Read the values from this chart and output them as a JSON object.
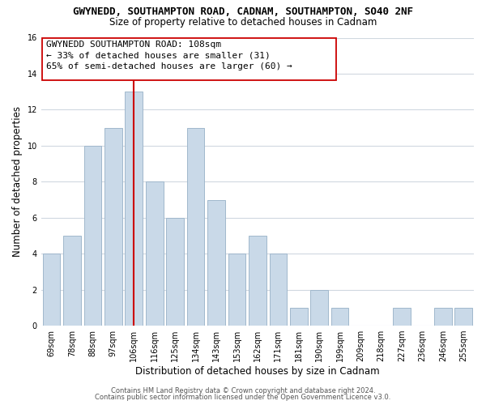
{
  "title": "GWYNEDD, SOUTHAMPTON ROAD, CADNAM, SOUTHAMPTON, SO40 2NF",
  "subtitle": "Size of property relative to detached houses in Cadnam",
  "xlabel": "Distribution of detached houses by size in Cadnam",
  "ylabel": "Number of detached properties",
  "bar_labels": [
    "69sqm",
    "78sqm",
    "88sqm",
    "97sqm",
    "106sqm",
    "116sqm",
    "125sqm",
    "134sqm",
    "143sqm",
    "153sqm",
    "162sqm",
    "171sqm",
    "181sqm",
    "190sqm",
    "199sqm",
    "209sqm",
    "218sqm",
    "227sqm",
    "236sqm",
    "246sqm",
    "255sqm"
  ],
  "bar_values": [
    4,
    5,
    10,
    11,
    13,
    8,
    6,
    11,
    7,
    4,
    5,
    4,
    1,
    2,
    1,
    0,
    0,
    1,
    0,
    1,
    1
  ],
  "bar_color": "#c9d9e8",
  "bar_edge_color": "#a0b8cc",
  "highlight_line_color": "#cc0000",
  "highlight_line_index": 4,
  "ylim": [
    0,
    16
  ],
  "yticks": [
    0,
    2,
    4,
    6,
    8,
    10,
    12,
    14,
    16
  ],
  "annotation_title": "GWYNEDD SOUTHAMPTON ROAD: 108sqm",
  "annotation_line1": "← 33% of detached houses are smaller (31)",
  "annotation_line2": "65% of semi-detached houses are larger (60) →",
  "footer_line1": "Contains HM Land Registry data © Crown copyright and database right 2024.",
  "footer_line2": "Contains public sector information licensed under the Open Government Licence v3.0.",
  "background_color": "#ffffff",
  "grid_color": "#d0d8e0",
  "title_fontsize": 9.0,
  "subtitle_fontsize": 8.5,
  "xlabel_fontsize": 8.5,
  "ylabel_fontsize": 8.5,
  "tick_fontsize": 7.0,
  "annotation_fontsize": 8.0,
  "footer_fontsize": 6.0
}
